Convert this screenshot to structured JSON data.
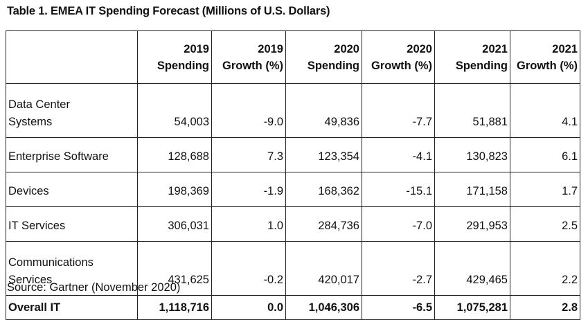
{
  "title": "Table 1. EMEA IT Spending Forecast (Millions of U.S. Dollars)",
  "headers": [
    {
      "line1": "2019",
      "line2": "Spending"
    },
    {
      "line1": "2019",
      "line2": "Growth (%)"
    },
    {
      "line1": "2020",
      "line2": "Spending"
    },
    {
      "line1": "2020",
      "line2": "Growth (%)"
    },
    {
      "line1": "2021",
      "line2": "Spending"
    },
    {
      "line1": "2021",
      "line2": "Growth (%)"
    }
  ],
  "rows": [
    {
      "label1": "Data Center",
      "label2": "Systems",
      "values": [
        "54,003",
        "-9.0",
        "49,836",
        "-7.7",
        "51,881",
        "4.1"
      ]
    },
    {
      "label": "Enterprise Software",
      "values": [
        "128,688",
        "7.3",
        "123,354",
        "-4.1",
        "130,823",
        "6.1"
      ]
    },
    {
      "label": "Devices",
      "values": [
        "198,369",
        "-1.9",
        "168,362",
        "-15.1",
        "171,158",
        "1.7"
      ]
    },
    {
      "label": "IT Services",
      "values": [
        "306,031",
        "1.0",
        "284,736",
        "-7.0",
        "291,953",
        "2.5"
      ]
    },
    {
      "label1": "Communications",
      "label2": "Services",
      "values": [
        "431,625",
        "-0.2",
        "420,017",
        "-2.7",
        "429,465",
        "2.2"
      ]
    }
  ],
  "total": {
    "label": "Overall IT",
    "values": [
      "1,118,716",
      "0.0",
      "1,046,306",
      "-6.5",
      "1,075,281",
      "2.8"
    ]
  },
  "source": "Source: Gartner (November 2020)"
}
